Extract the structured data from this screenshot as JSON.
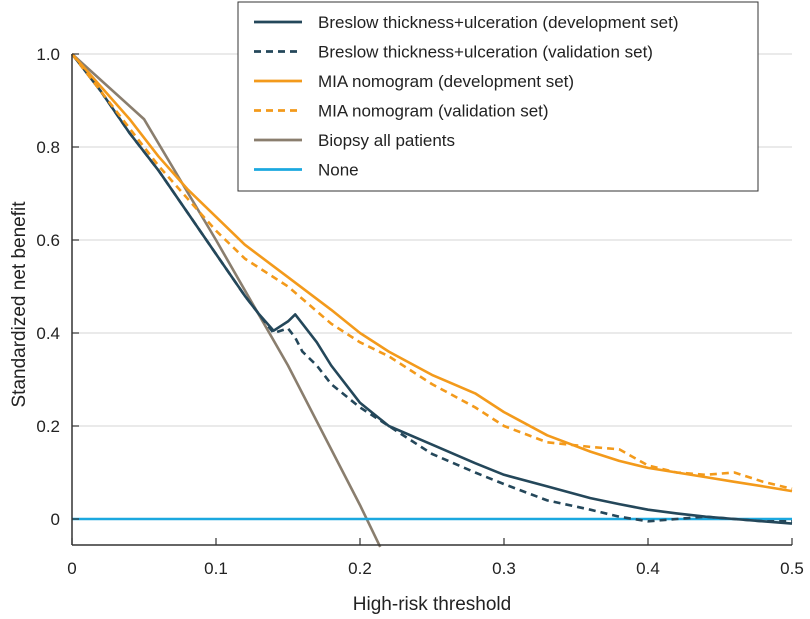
{
  "chart_data": {
    "type": "line",
    "title": "",
    "xlabel": "High-risk threshold",
    "ylabel": "Standardized net benefit",
    "xlim": [
      0,
      0.5
    ],
    "ylim": [
      -0.05,
      1.0
    ],
    "x_ticks": [
      0,
      0.1,
      0.2,
      0.3,
      0.4,
      0.5
    ],
    "x_tick_labels": [
      "0",
      "0.1",
      "0.2",
      "0.3",
      "0.4",
      "0.5"
    ],
    "y_ticks": [
      0,
      0.2,
      0.4,
      0.6,
      0.8,
      1.0
    ],
    "y_tick_labels": [
      "0",
      "0.2",
      "0.4",
      "0.6",
      "0.8",
      "1.0"
    ],
    "grid": "horizontal",
    "legend_position": "top-right",
    "colors": {
      "navy": "#24475a",
      "orange": "#f39a1b",
      "taupe": "#8a7e6e",
      "cyan": "#1ba8df",
      "grid": "#d6d6d6",
      "axis": "#333333"
    },
    "series": [
      {
        "name": "Breslow thickness+ulceration (development set)",
        "color": "#24475a",
        "dash": "solid",
        "x": [
          0,
          0.02,
          0.04,
          0.06,
          0.08,
          0.1,
          0.12,
          0.13,
          0.14,
          0.15,
          0.155,
          0.16,
          0.17,
          0.18,
          0.2,
          0.22,
          0.25,
          0.28,
          0.3,
          0.33,
          0.36,
          0.38,
          0.4,
          0.42,
          0.44,
          0.46,
          0.48,
          0.5
        ],
        "y": [
          1.0,
          0.92,
          0.83,
          0.75,
          0.66,
          0.57,
          0.48,
          0.44,
          0.405,
          0.425,
          0.44,
          0.42,
          0.38,
          0.33,
          0.25,
          0.2,
          0.16,
          0.12,
          0.095,
          0.07,
          0.045,
          0.032,
          0.02,
          0.012,
          0.005,
          0.0,
          -0.005,
          -0.01
        ]
      },
      {
        "name": "Breslow thickness+ulceration (validation set)",
        "color": "#24475a",
        "dash": "dashed",
        "x": [
          0,
          0.02,
          0.04,
          0.06,
          0.08,
          0.1,
          0.12,
          0.13,
          0.14,
          0.15,
          0.155,
          0.16,
          0.17,
          0.18,
          0.2,
          0.22,
          0.25,
          0.28,
          0.3,
          0.33,
          0.36,
          0.38,
          0.4,
          0.42,
          0.44,
          0.46,
          0.48,
          0.5
        ],
        "y": [
          1.0,
          0.92,
          0.83,
          0.75,
          0.66,
          0.57,
          0.48,
          0.44,
          0.4,
          0.41,
          0.39,
          0.36,
          0.33,
          0.29,
          0.24,
          0.2,
          0.14,
          0.1,
          0.075,
          0.04,
          0.02,
          0.005,
          -0.005,
          0.0,
          0.005,
          0.0,
          -0.005,
          -0.005
        ]
      },
      {
        "name": "MIA nomogram (development set)",
        "color": "#f39a1b",
        "dash": "solid",
        "x": [
          0,
          0.02,
          0.04,
          0.06,
          0.08,
          0.1,
          0.12,
          0.15,
          0.18,
          0.2,
          0.22,
          0.25,
          0.28,
          0.3,
          0.33,
          0.36,
          0.38,
          0.4,
          0.42,
          0.44,
          0.46,
          0.48,
          0.5
        ],
        "y": [
          1.0,
          0.93,
          0.86,
          0.78,
          0.71,
          0.65,
          0.59,
          0.52,
          0.45,
          0.4,
          0.36,
          0.31,
          0.27,
          0.23,
          0.18,
          0.145,
          0.125,
          0.11,
          0.1,
          0.09,
          0.08,
          0.07,
          0.06
        ]
      },
      {
        "name": "MIA nomogram (validation set)",
        "color": "#f39a1b",
        "dash": "dashed",
        "x": [
          0,
          0.02,
          0.04,
          0.06,
          0.08,
          0.1,
          0.12,
          0.15,
          0.18,
          0.2,
          0.22,
          0.25,
          0.28,
          0.3,
          0.33,
          0.36,
          0.38,
          0.4,
          0.42,
          0.44,
          0.46,
          0.48,
          0.5
        ],
        "y": [
          1.0,
          0.92,
          0.84,
          0.76,
          0.69,
          0.62,
          0.56,
          0.5,
          0.42,
          0.38,
          0.35,
          0.29,
          0.24,
          0.2,
          0.165,
          0.155,
          0.15,
          0.115,
          0.1,
          0.095,
          0.1,
          0.08,
          0.065
        ]
      },
      {
        "name": "Biopsy all patients",
        "color": "#8a7e6e",
        "dash": "solid",
        "x": [
          0,
          0.05,
          0.1,
          0.15,
          0.2,
          0.214
        ],
        "y": [
          1.0,
          0.86,
          0.6,
          0.33,
          0.03,
          -0.06
        ]
      },
      {
        "name": "None",
        "color": "#1ba8df",
        "dash": "solid",
        "x": [
          0,
          0.5
        ],
        "y": [
          0,
          0
        ]
      }
    ]
  }
}
